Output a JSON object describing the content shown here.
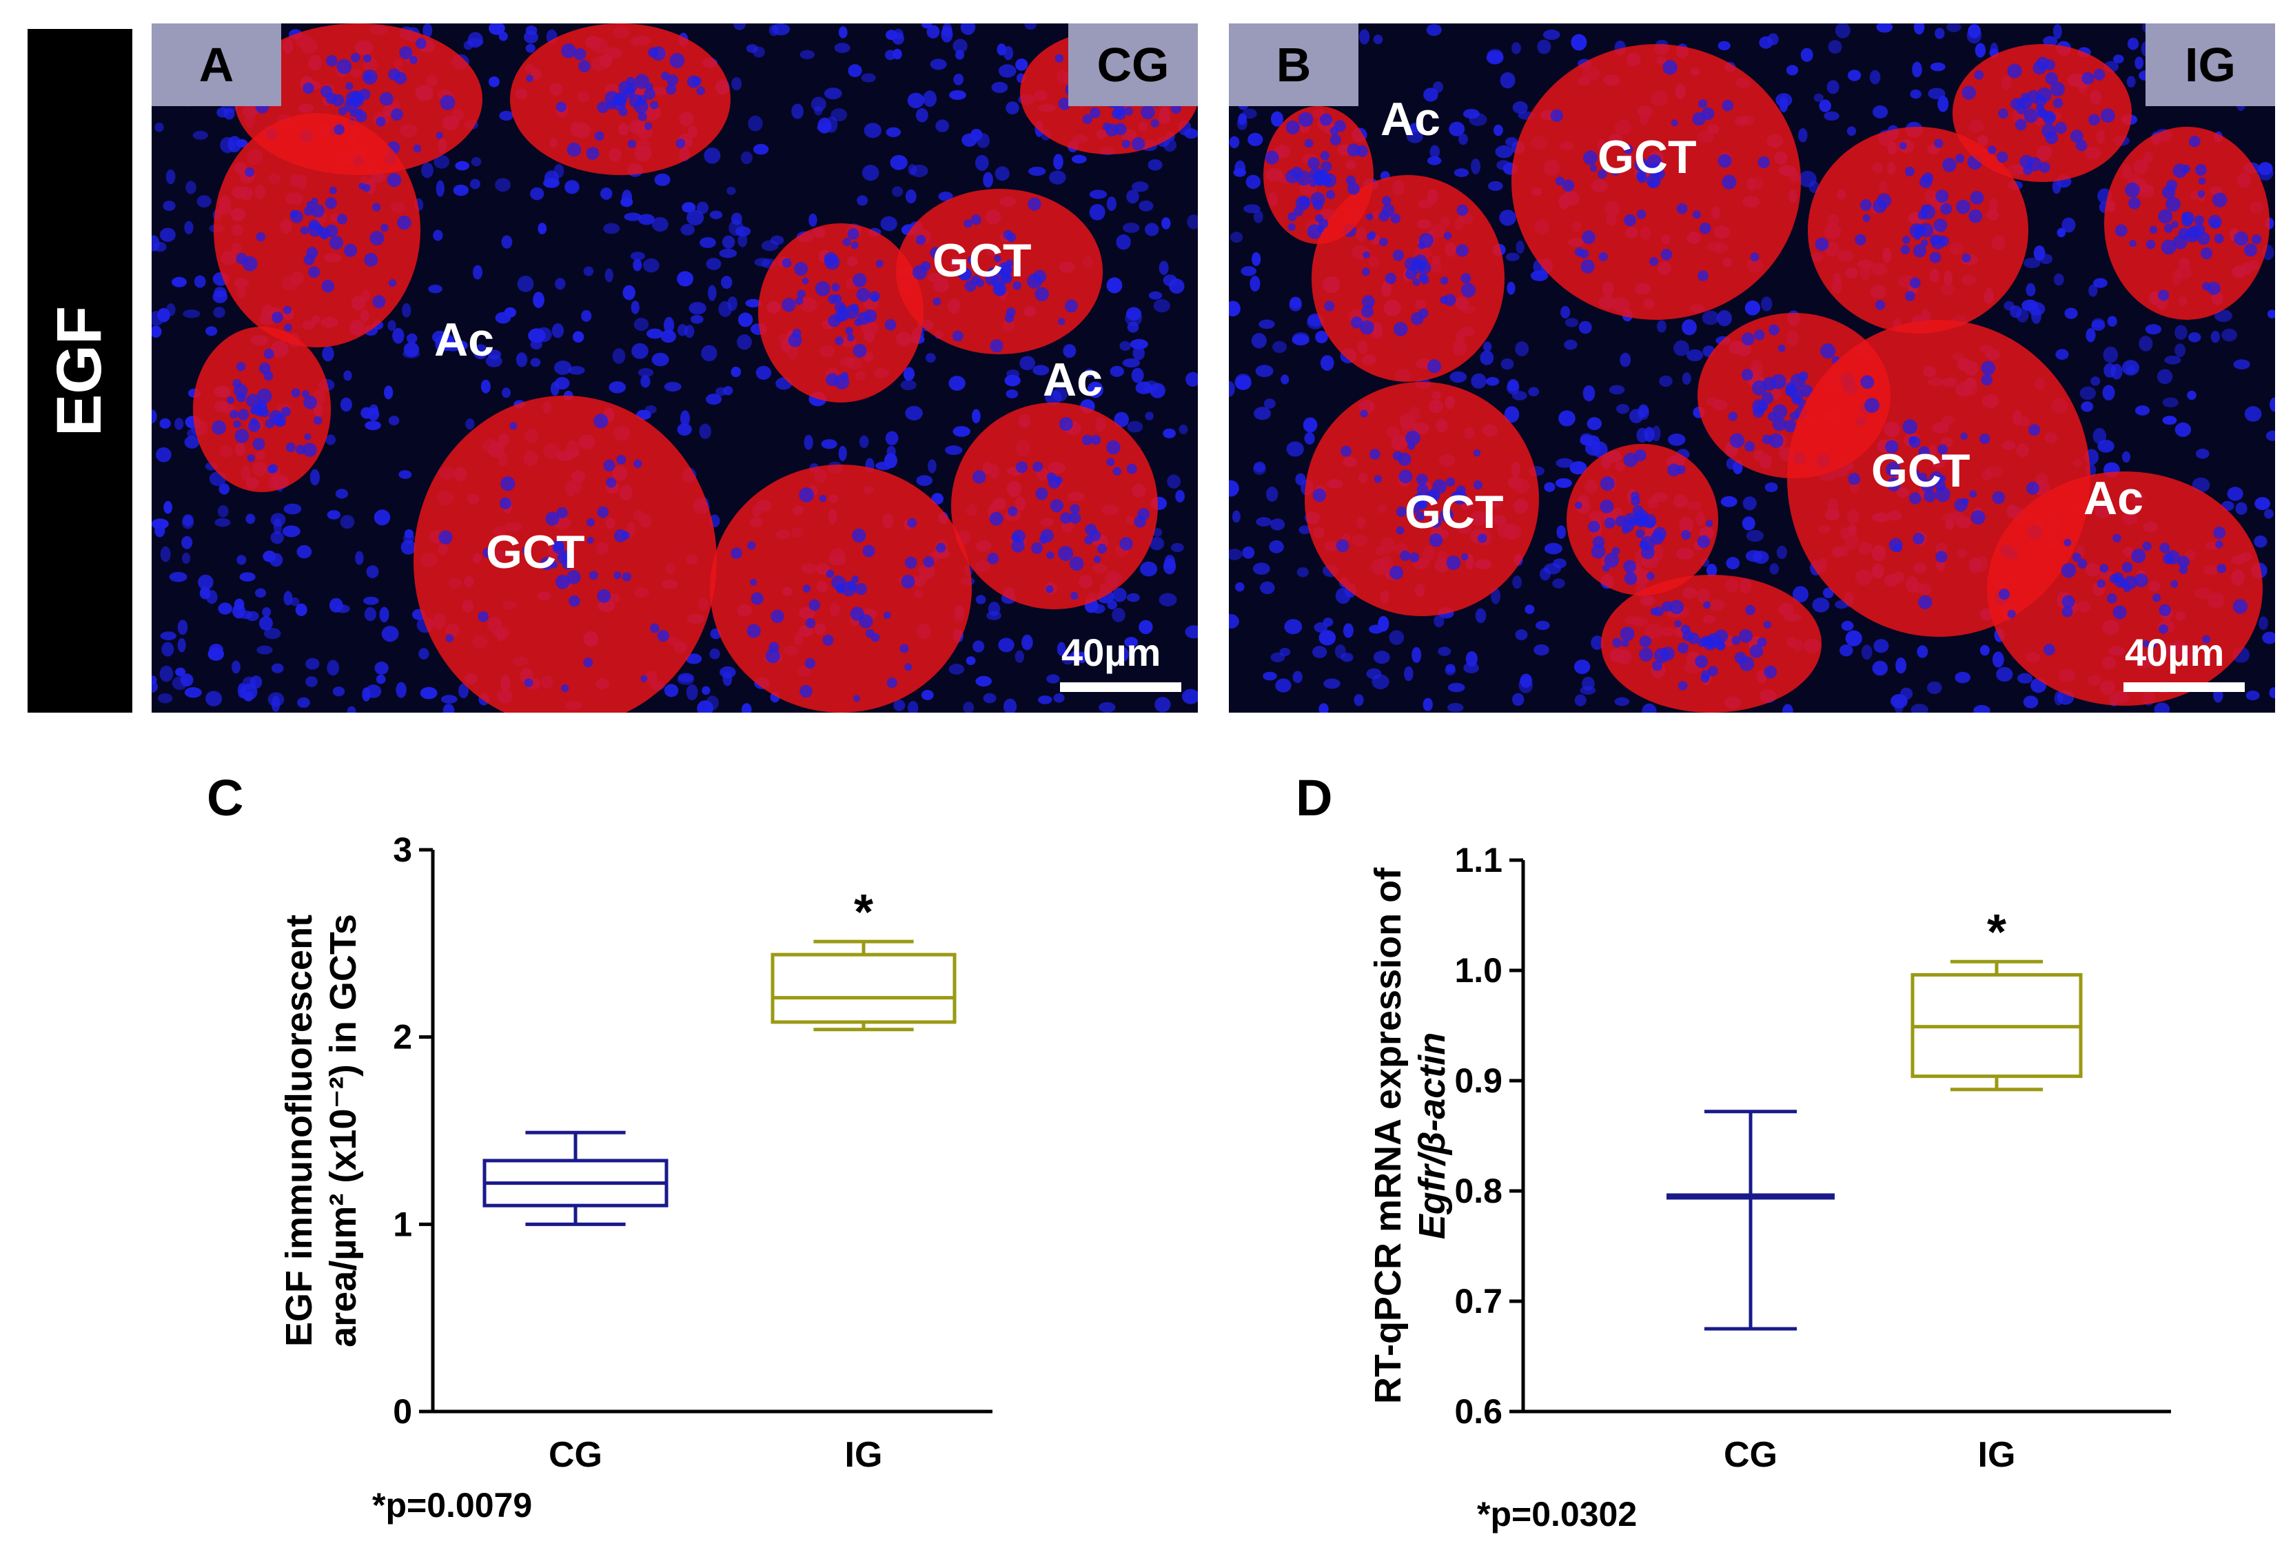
{
  "figure": {
    "row_label": "EGF",
    "panels": {
      "a": {
        "letter": "A",
        "group": "CG",
        "scale": "40µm",
        "labels": [
          "Ac",
          "GCT",
          "Ac",
          "GCT"
        ]
      },
      "b": {
        "letter": "B",
        "group": "IG",
        "scale": "40µm",
        "labels": [
          "Ac",
          "GCT",
          "GCT",
          "GCT",
          "Ac"
        ]
      }
    },
    "colors": {
      "nuclei": "#1f22e6",
      "stain": "#e81418",
      "background": "#050622",
      "cg_box": "#1a1a8c",
      "ig_box": "#9a9a14"
    }
  },
  "chart_data": [
    {
      "panel": "C",
      "type": "box",
      "ylabel_line1": "EGF immunofluorescent",
      "ylabel_line2": "area/µm² (x10⁻²) in GCTs",
      "ylim": [
        0,
        3
      ],
      "yticks": [
        "0",
        "1",
        "2",
        "3"
      ],
      "categories": [
        "CG",
        "IG"
      ],
      "boxes": [
        {
          "group": "CG",
          "min": 1.0,
          "q1": 1.1,
          "median": 1.22,
          "q3": 1.34,
          "max": 1.49,
          "color": "#1a1a8c",
          "marker": ""
        },
        {
          "group": "IG",
          "min": 2.04,
          "q1": 2.08,
          "median": 2.21,
          "q3": 2.44,
          "max": 2.51,
          "color": "#9a9a14",
          "marker": "*"
        }
      ],
      "note": "*p=0.0079"
    },
    {
      "panel": "D",
      "type": "box",
      "ylabel_line1": "RT-qPCR mRNA expression of",
      "ylabel_line2": "Egfr/β-actin",
      "ylim": [
        0.6,
        1.1
      ],
      "yticks": [
        "0.6",
        "0.7",
        "0.8",
        "0.9",
        "1.0",
        "1.1"
      ],
      "categories": [
        "CG",
        "IG"
      ],
      "boxes": [
        {
          "group": "CG",
          "min": 0.675,
          "q1": 0.795,
          "median": 0.795,
          "q3": 0.795,
          "max": 0.872,
          "color": "#1a1a8c",
          "marker": ""
        },
        {
          "group": "IG",
          "min": 0.892,
          "q1": 0.904,
          "median": 0.949,
          "q3": 0.996,
          "max": 1.008,
          "color": "#9a9a14",
          "marker": "*"
        }
      ],
      "note": "*p=0.0302"
    }
  ]
}
